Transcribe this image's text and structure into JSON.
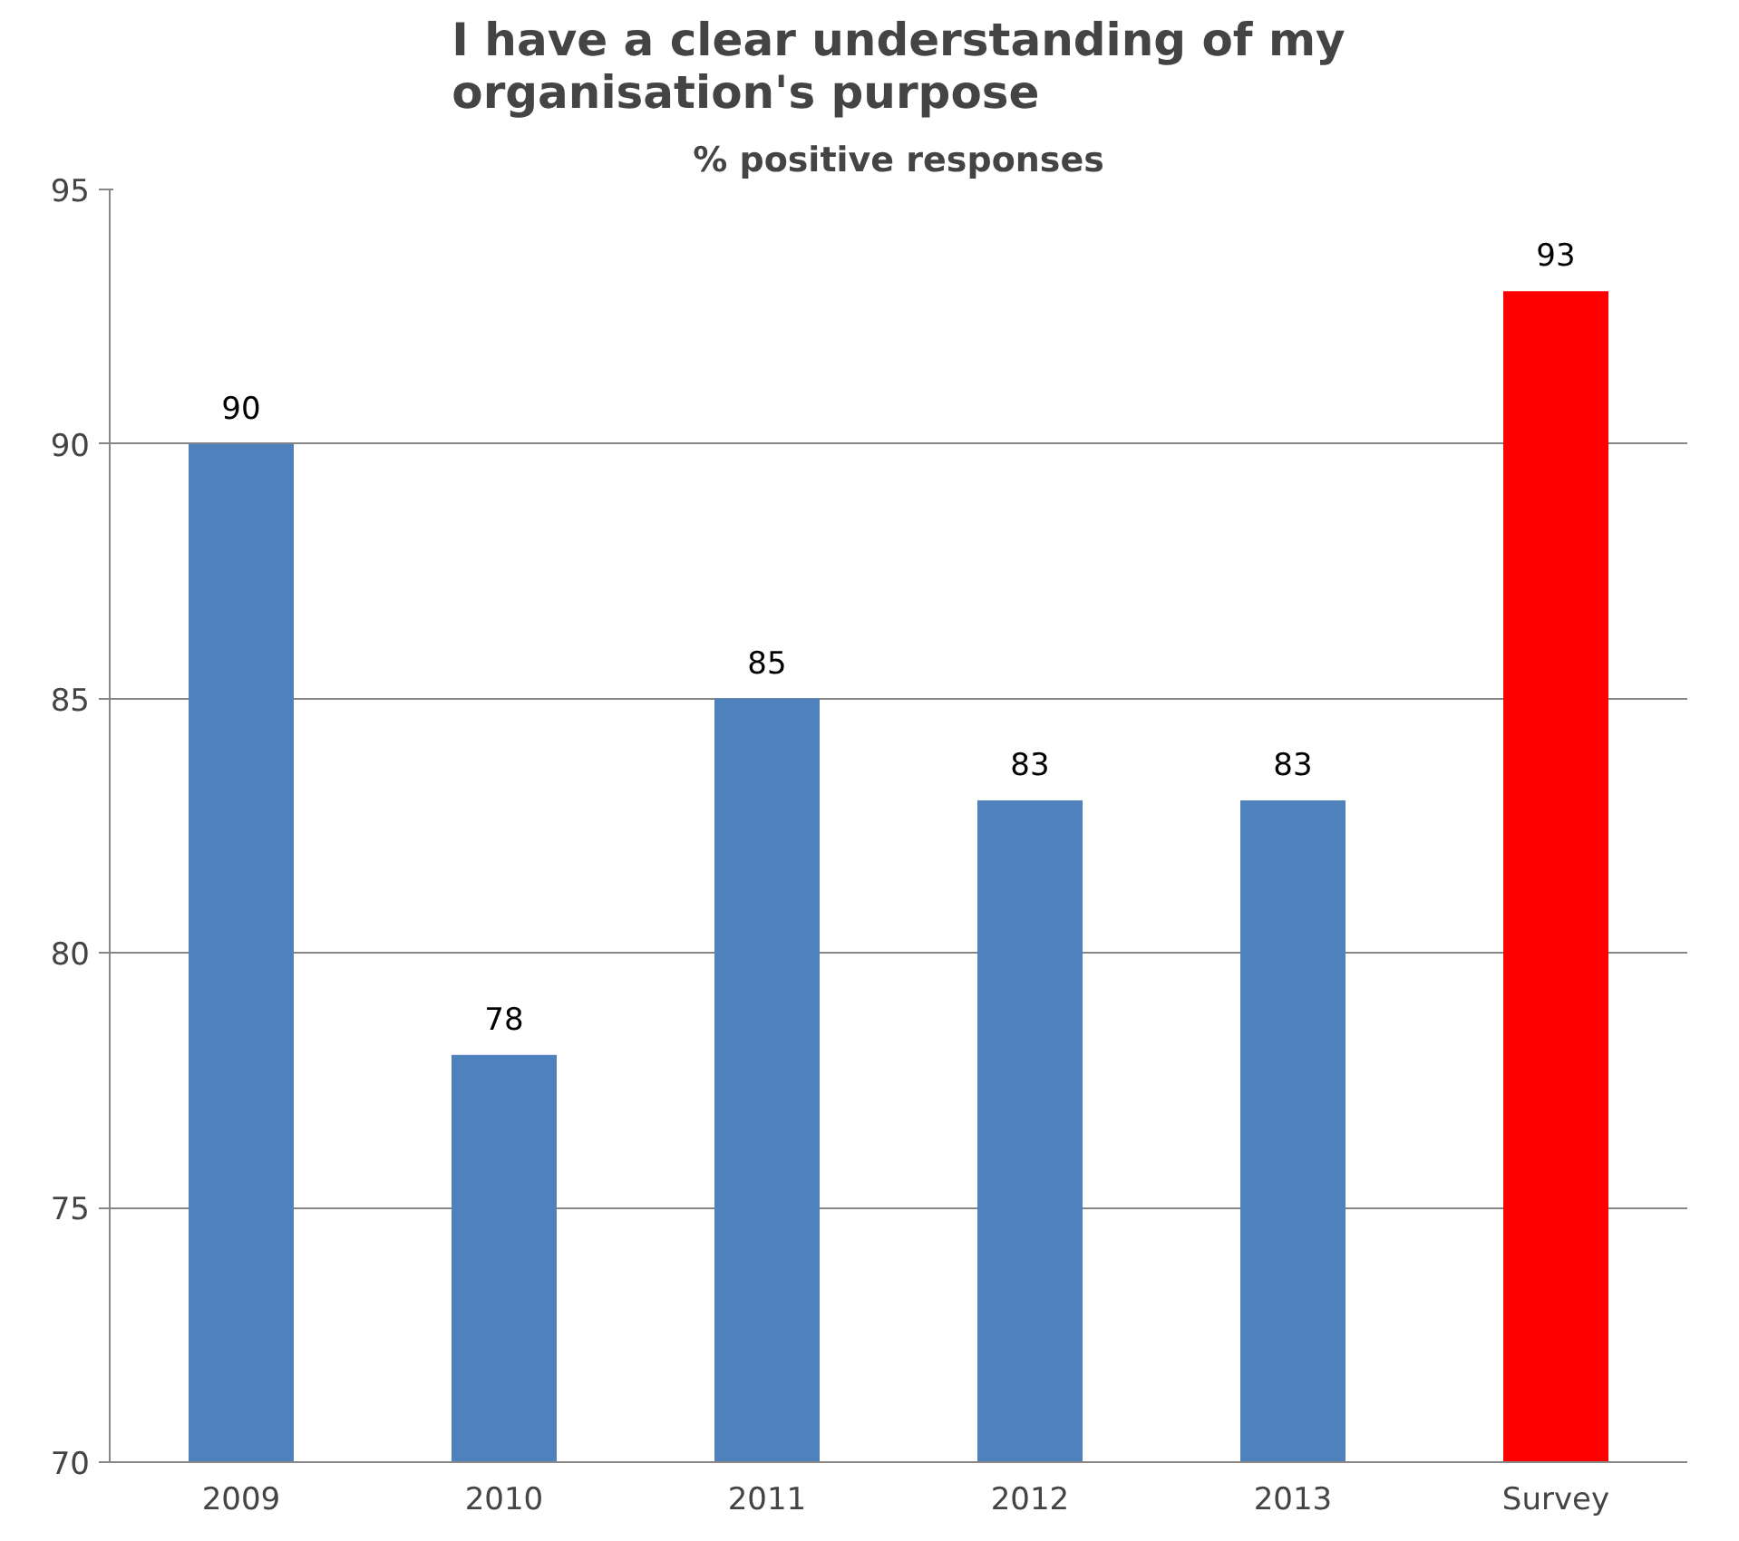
{
  "chart_data": {
    "type": "bar",
    "title": "I have a clear understanding of my\norganisation's purpose",
    "subtitle": "% positive responses",
    "categories": [
      "2009",
      "2010",
      "2011",
      "2012",
      "2013",
      "Survey"
    ],
    "values": [
      90,
      78,
      85,
      83,
      83,
      93
    ],
    "colors": [
      "#4f81bd",
      "#4f81bd",
      "#4f81bd",
      "#4f81bd",
      "#4f81bd",
      "#ff0000"
    ],
    "ylim": [
      70,
      95
    ],
    "yticks": [
      70,
      75,
      80,
      85,
      90,
      95
    ],
    "grid": "y",
    "data_labels": true
  }
}
